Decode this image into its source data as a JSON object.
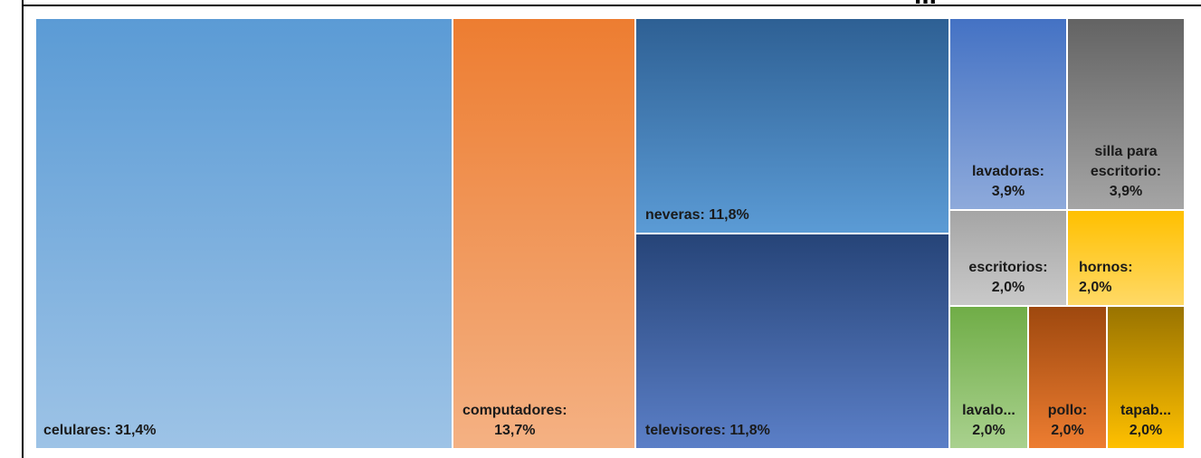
{
  "title_fragment": "...",
  "chart_data": {
    "type": "treemap",
    "title": "",
    "items": [
      {
        "name": "celulares",
        "label": "celulares: 31,4%",
        "value": 31.4,
        "color": [
          "#5b9bd5",
          "#9dc3e6"
        ]
      },
      {
        "name": "computadores",
        "label_line1": "computadores:",
        "label_line2": "13,7%",
        "value": 13.7,
        "color": [
          "#ed7d31",
          "#f4b183"
        ]
      },
      {
        "name": "neveras",
        "label": "neveras: 11,8%",
        "value": 11.8,
        "color": [
          "#2e6094",
          "#5b9bd5"
        ]
      },
      {
        "name": "televisores",
        "label": "televisores: 11,8%",
        "value": 11.8,
        "color": [
          "#264478",
          "#5b7fc7"
        ]
      },
      {
        "name": "lavadoras",
        "label_line1": "lavadoras:",
        "label_line2": "3,9%",
        "value": 3.9,
        "color": [
          "#4472c4",
          "#8eaadb"
        ]
      },
      {
        "name": "silla para escritorio",
        "label_line1": "silla para",
        "label_line2": "escritorio:",
        "label_line3": "3,9%",
        "value": 3.9,
        "color": [
          "#636363",
          "#a5a5a5"
        ]
      },
      {
        "name": "escritorios",
        "label_line1": "escritorios:",
        "label_line2": "2,0%",
        "value": 2.0,
        "color": [
          "#a5a5a5",
          "#c9c9c9"
        ]
      },
      {
        "name": "hornos",
        "label_line1": "hornos:",
        "label_line2": "2,0%",
        "value": 2.0,
        "color": [
          "#ffc000",
          "#ffd966"
        ]
      },
      {
        "name": "lavalo...",
        "label_line1": "lavalo...",
        "label_line2": "2,0%",
        "value": 2.0,
        "color": [
          "#70ad47",
          "#a9d18e"
        ]
      },
      {
        "name": "pollo",
        "label_line1": "pollo:",
        "label_line2": "2,0%",
        "value": 2.0,
        "color": [
          "#9e480e",
          "#ed7d31"
        ]
      },
      {
        "name": "tapab...",
        "label_line1": "tapab...",
        "label_line2": "2,0%",
        "value": 2.0,
        "color": [
          "#997300",
          "#ffc000"
        ]
      }
    ]
  }
}
